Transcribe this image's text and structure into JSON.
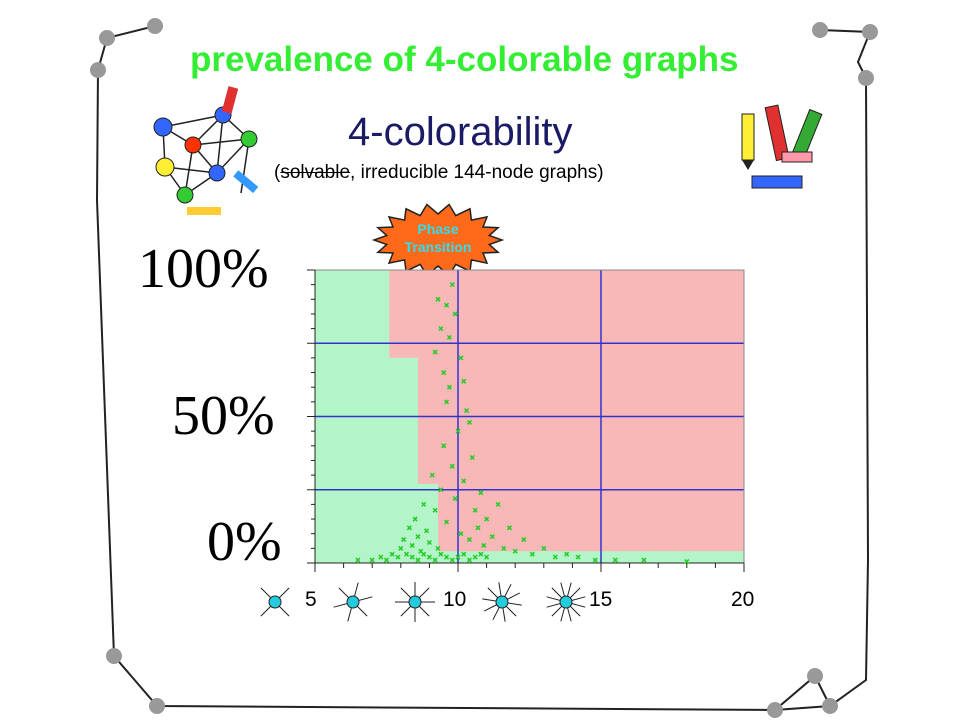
{
  "page": {
    "title": "prevalence of 4-colorable graphs",
    "subtitle": "4-colorability",
    "caption_struck": "solvable",
    "caption_rest": ", irreducible 144-node graphs)",
    "caption_open": "(",
    "badge": {
      "line1": "Phase",
      "line2": "Transition"
    },
    "colors": {
      "title": "#33ee33",
      "subtitle": "#1a1a66",
      "solvable_region": "#b3f5c8",
      "unsolvable_region": "#f9b8b8",
      "grid": "#3333cc",
      "points": "#22cc22",
      "badge": "#ff6a1a",
      "badge_text": "#33ddee",
      "degree_node": "#22ccdd"
    }
  },
  "chart_data": {
    "type": "scatter",
    "xlim": [
      5,
      20
    ],
    "ylim": [
      0,
      100
    ],
    "ytick_labels": [
      "100%",
      "50%",
      "0%"
    ],
    "ytick_values": [
      100,
      50,
      0
    ],
    "xtick_labels": [
      "5",
      "10",
      "15",
      "20"
    ],
    "xtick_values": [
      5,
      10,
      15,
      20
    ],
    "grid": true,
    "regions": [
      {
        "name": "solvable",
        "boundary": [
          [
            5,
            100
          ],
          [
            7.6,
            100
          ],
          [
            7.6,
            70
          ],
          [
            8.6,
            70
          ],
          [
            8.6,
            27
          ],
          [
            9.3,
            27
          ],
          [
            9.3,
            4
          ],
          [
            20,
            4
          ],
          [
            20,
            0
          ],
          [
            5,
            0
          ]
        ]
      },
      {
        "name": "unsolvable"
      }
    ],
    "points": [
      [
        6.5,
        1
      ],
      [
        7.0,
        1
      ],
      [
        7.3,
        2
      ],
      [
        7.5,
        1
      ],
      [
        7.7,
        3
      ],
      [
        7.9,
        2
      ],
      [
        8.0,
        5
      ],
      [
        8.1,
        8
      ],
      [
        8.2,
        3
      ],
      [
        8.3,
        12
      ],
      [
        8.4,
        6
      ],
      [
        8.5,
        15
      ],
      [
        8.6,
        9
      ],
      [
        8.7,
        4
      ],
      [
        8.8,
        20
      ],
      [
        8.9,
        11
      ],
      [
        9.0,
        7
      ],
      [
        9.1,
        30
      ],
      [
        9.2,
        18
      ],
      [
        9.3,
        5
      ],
      [
        9.4,
        25
      ],
      [
        9.5,
        40
      ],
      [
        9.6,
        14
      ],
      [
        9.7,
        60
      ],
      [
        9.8,
        33
      ],
      [
        9.9,
        22
      ],
      [
        10.0,
        45
      ],
      [
        10.1,
        10
      ],
      [
        10.2,
        28
      ],
      [
        10.3,
        52
      ],
      [
        10.4,
        8
      ],
      [
        10.5,
        36
      ],
      [
        10.6,
        18
      ],
      [
        10.7,
        12
      ],
      [
        10.8,
        24
      ],
      [
        10.9,
        6
      ],
      [
        11.0,
        15
      ],
      [
        11.2,
        9
      ],
      [
        11.4,
        20
      ],
      [
        11.6,
        5
      ],
      [
        11.8,
        12
      ],
      [
        12.0,
        4
      ],
      [
        12.3,
        8
      ],
      [
        12.6,
        3
      ],
      [
        13.0,
        5
      ],
      [
        13.4,
        2
      ],
      [
        13.8,
        3
      ],
      [
        14.2,
        2
      ],
      [
        14.8,
        1
      ],
      [
        15.5,
        1
      ],
      [
        16.5,
        1
      ],
      [
        18.0,
        0.5
      ],
      [
        9.2,
        72
      ],
      [
        9.4,
        80
      ],
      [
        9.6,
        88
      ],
      [
        9.8,
        95
      ],
      [
        9.5,
        65
      ],
      [
        9.7,
        77
      ],
      [
        10.1,
        70
      ],
      [
        10.2,
        62
      ],
      [
        9.9,
        85
      ],
      [
        9.3,
        90
      ],
      [
        9.6,
        55
      ],
      [
        10.4,
        48
      ],
      [
        8.4,
        2
      ],
      [
        8.6,
        1
      ],
      [
        8.8,
        3
      ],
      [
        9.0,
        2
      ],
      [
        9.2,
        1
      ],
      [
        9.4,
        3
      ],
      [
        9.6,
        2
      ],
      [
        9.8,
        1
      ],
      [
        10.0,
        2
      ],
      [
        10.2,
        3
      ],
      [
        10.4,
        1
      ],
      [
        10.6,
        2
      ],
      [
        10.8,
        3
      ],
      [
        11.0,
        2
      ]
    ],
    "x_degree_glyphs": [
      4,
      6,
      8,
      10,
      12
    ]
  }
}
